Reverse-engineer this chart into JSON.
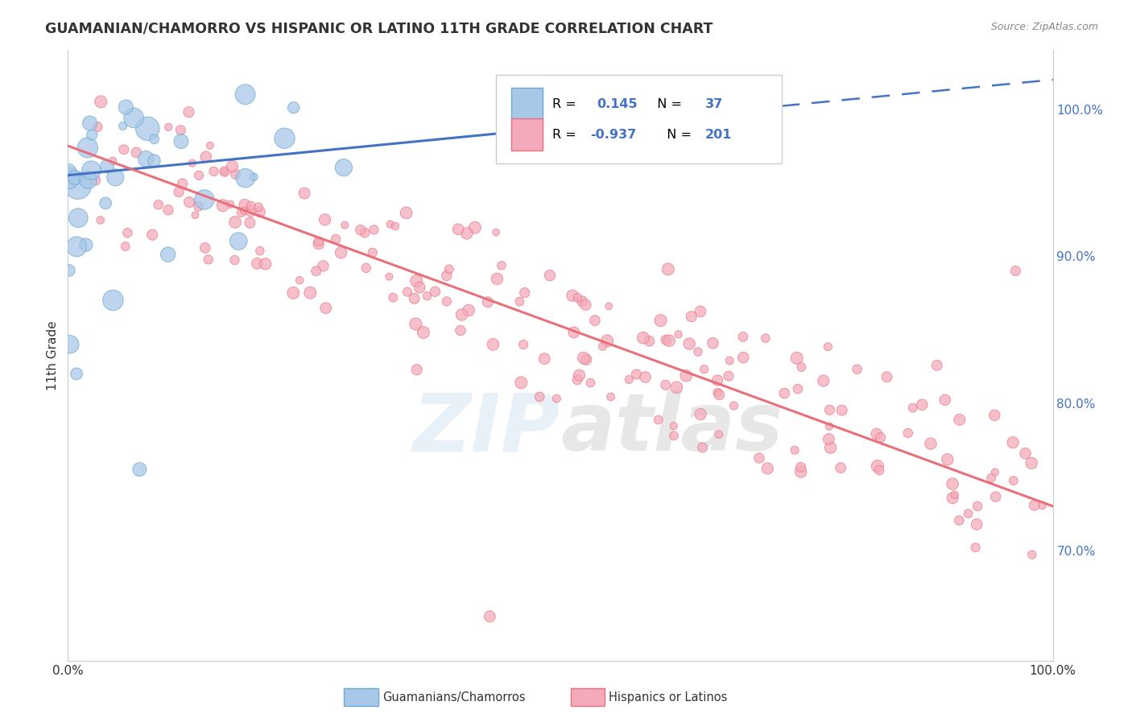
{
  "title": "GUAMANIAN/CHAMORRO VS HISPANIC OR LATINO 11TH GRADE CORRELATION CHART",
  "source": "Source: ZipAtlas.com",
  "ylabel": "11th Grade",
  "y_tick_labels": [
    "70.0%",
    "80.0%",
    "90.0%",
    "100.0%"
  ],
  "y_tick_values": [
    0.7,
    0.8,
    0.9,
    1.0
  ],
  "x_lim": [
    0.0,
    1.0
  ],
  "y_lim": [
    0.625,
    1.04
  ],
  "blue_R": 0.145,
  "blue_N": 37,
  "pink_R": -0.937,
  "pink_N": 201,
  "blue_line_color": "#4472C4",
  "pink_line_color": "#E8707A",
  "blue_scatter_color": "#A8C8E8",
  "blue_scatter_edge": "#6AAAD4",
  "pink_scatter_color": "#F4AABB",
  "pink_scatter_edge": "#E8707A",
  "legend_blue_label": "Guamanians/Chamorros",
  "legend_pink_label": "Hispanics or Latinos",
  "watermark": "ZIPAtlas",
  "background_color": "#FFFFFF",
  "grid_color": "#DDDDDD",
  "blue_line_solid_end": 0.45,
  "blue_slope": 0.065,
  "blue_intercept": 0.955,
  "pink_slope": -0.245,
  "pink_intercept": 0.975,
  "text_color": "#333333",
  "source_color": "#888888",
  "ytick_color": "#4472C4"
}
